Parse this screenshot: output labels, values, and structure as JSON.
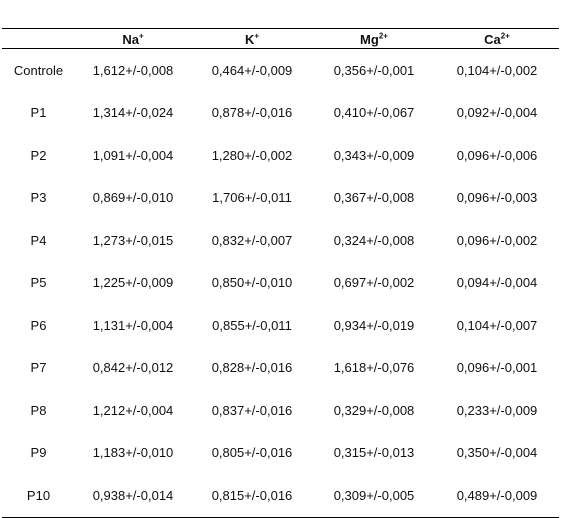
{
  "table": {
    "headers": [
      {
        "base": "",
        "sup": ""
      },
      {
        "base": "Na",
        "sup": "+"
      },
      {
        "base": "K",
        "sup": "+"
      },
      {
        "base": "Mg",
        "sup": "2+"
      },
      {
        "base": "Ca",
        "sup": "2+"
      }
    ],
    "rows": [
      {
        "label": "Controle",
        "values": [
          "1,612+/-0,008",
          "0,464+/-0,009",
          "0,356+/-0,001",
          "0,104+/-0,002"
        ]
      },
      {
        "label": "P1",
        "values": [
          "1,314+/-0,024",
          "0,878+/-0,016",
          "0,410+/-0,067",
          "0,092+/-0,004"
        ]
      },
      {
        "label": "P2",
        "values": [
          "1,091+/-0,004",
          "1,280+/-0,002",
          "0,343+/-0,009",
          "0,096+/-0,006"
        ]
      },
      {
        "label": "P3",
        "values": [
          "0,869+/-0,010",
          "1,706+/-0,011",
          "0,367+/-0,008",
          "0,096+/-0,003"
        ]
      },
      {
        "label": "P4",
        "values": [
          "1,273+/-0,015",
          "0,832+/-0,007",
          "0,324+/-0,008",
          "0,096+/-0,002"
        ]
      },
      {
        "label": "P5",
        "values": [
          "1,225+/-0,009",
          "0,850+/-0,010",
          "0,697+/-0,002",
          "0,094+/-0,004"
        ]
      },
      {
        "label": "P6",
        "values": [
          "1,131+/-0,004",
          "0,855+/-0,011",
          "0,934+/-0,019",
          "0,104+/-0,007"
        ]
      },
      {
        "label": "P7",
        "values": [
          "0,842+/-0,012",
          "0,828+/-0,016",
          "1,618+/-0,076",
          "0,096+/-0,001"
        ]
      },
      {
        "label": "P8",
        "values": [
          "1,212+/-0,004",
          "0,837+/-0,016",
          "0,329+/-0,008",
          "0,233+/-0,009"
        ]
      },
      {
        "label": "P9",
        "values": [
          "1,183+/-0,010",
          "0,805+/-0,016",
          "0,315+/-0,013",
          "0,350+/-0,004"
        ]
      },
      {
        "label": "P10",
        "values": [
          "0,938+/-0,014",
          "0,815+/-0,016",
          "0,309+/-0,005",
          "0,489+/-0,009"
        ]
      }
    ]
  }
}
